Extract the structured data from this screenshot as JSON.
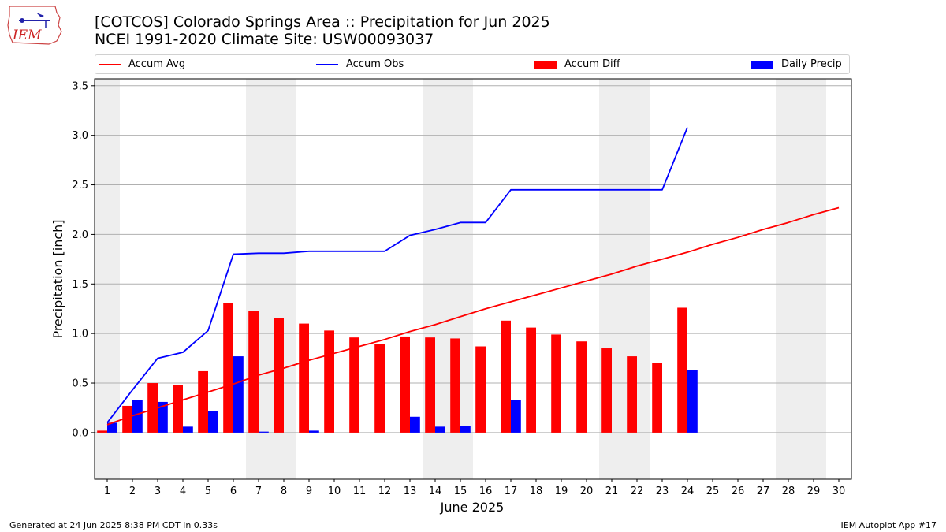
{
  "header": {
    "title_line1": "[COTCOS] Colorado Springs Area :: Precipitation for Jun 2025",
    "title_line2": "NCEI 1991-2020 Climate Site: USW00093037"
  },
  "logo": {
    "text": "IEM",
    "color": "#cc2222",
    "accent": "#2222aa"
  },
  "footer": {
    "left": "Generated at 24 Jun 2025 8:38 PM CDT in 0.33s",
    "right": "IEM Autoplot App #17"
  },
  "chart_data": {
    "type": "bar",
    "xlabel": "June 2025",
    "ylabel": "Precipitation [inch]",
    "x": [
      1,
      2,
      3,
      4,
      5,
      6,
      7,
      8,
      9,
      10,
      11,
      12,
      13,
      14,
      15,
      16,
      17,
      18,
      19,
      20,
      21,
      22,
      23,
      24,
      25,
      26,
      27,
      28,
      29,
      30
    ],
    "xlim": [
      0.5,
      30.5
    ],
    "ylim": [
      -0.47,
      3.57
    ],
    "yticks": [
      0.0,
      0.5,
      1.0,
      1.5,
      2.0,
      2.5,
      3.0,
      3.5
    ],
    "ytick_labels": [
      "0.0",
      "0.5",
      "1.0",
      "1.5",
      "2.0",
      "2.5",
      "3.0",
      "3.5"
    ],
    "grid": "horizontal",
    "legend_position": "top",
    "weekend_shading": [
      [
        0.5,
        1.5
      ],
      [
        6.5,
        8.5
      ],
      [
        13.5,
        15.5
      ],
      [
        20.5,
        22.5
      ],
      [
        27.5,
        29.5
      ]
    ],
    "weekend_color": "#eeeeee",
    "series": [
      {
        "name": "Accum Avg",
        "kind": "line",
        "color": "#ff0000",
        "x": [
          1,
          2,
          3,
          4,
          5,
          6,
          7,
          8,
          9,
          10,
          11,
          12,
          13,
          14,
          15,
          16,
          17,
          18,
          19,
          20,
          21,
          22,
          23,
          24,
          25,
          26,
          27,
          28,
          29,
          30
        ],
        "values": [
          0.08,
          0.17,
          0.25,
          0.33,
          0.41,
          0.49,
          0.58,
          0.65,
          0.73,
          0.8,
          0.87,
          0.94,
          1.02,
          1.09,
          1.17,
          1.25,
          1.32,
          1.39,
          1.46,
          1.53,
          1.6,
          1.68,
          1.75,
          1.82,
          1.9,
          1.97,
          2.05,
          2.12,
          2.2,
          2.27
        ]
      },
      {
        "name": "Accum Obs",
        "kind": "line",
        "color": "#0000ff",
        "x": [
          1,
          2,
          3,
          4,
          5,
          6,
          7,
          8,
          9,
          10,
          11,
          12,
          13,
          14,
          15,
          16,
          17,
          18,
          19,
          20,
          21,
          22,
          23,
          24
        ],
        "values": [
          0.1,
          0.43,
          0.75,
          0.81,
          1.03,
          1.8,
          1.81,
          1.81,
          1.83,
          1.83,
          1.83,
          1.83,
          1.99,
          2.05,
          2.12,
          2.12,
          2.45,
          2.45,
          2.45,
          2.45,
          2.45,
          2.45,
          2.45,
          3.08
        ]
      },
      {
        "name": "Accum Diff",
        "kind": "bar",
        "color": "#ff0000",
        "x": [
          1,
          2,
          3,
          4,
          5,
          6,
          7,
          8,
          9,
          10,
          11,
          12,
          13,
          14,
          15,
          16,
          17,
          18,
          19,
          20,
          21,
          22,
          23,
          24
        ],
        "values": [
          0.02,
          0.27,
          0.5,
          0.48,
          0.62,
          1.31,
          1.23,
          1.16,
          1.1,
          1.03,
          0.96,
          0.89,
          0.97,
          0.96,
          0.95,
          0.87,
          1.13,
          1.06,
          0.99,
          0.92,
          0.85,
          0.77,
          0.7,
          1.26
        ]
      },
      {
        "name": "Daily Precip",
        "kind": "bar",
        "color": "#0000ff",
        "x": [
          1,
          2,
          3,
          4,
          5,
          6,
          7,
          8,
          9,
          10,
          11,
          12,
          13,
          14,
          15,
          16,
          17,
          18,
          19,
          20,
          21,
          22,
          23,
          24
        ],
        "values": [
          0.1,
          0.33,
          0.31,
          0.06,
          0.22,
          0.77,
          0.01,
          0.0,
          0.02,
          0.0,
          0.0,
          0.0,
          0.16,
          0.06,
          0.07,
          0.0,
          0.33,
          0.0,
          0.0,
          0.0,
          0.0,
          0.0,
          0.0,
          0.63
        ]
      }
    ]
  }
}
